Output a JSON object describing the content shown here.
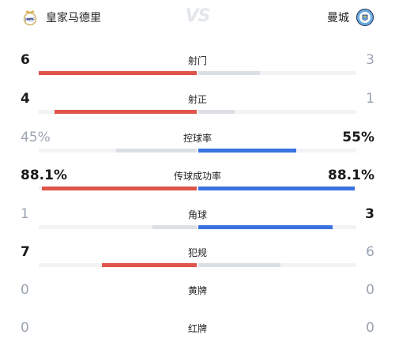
{
  "match": {
    "home_team": "皇家马德里",
    "away_team": "曼城",
    "vs_text": "VS"
  },
  "colors": {
    "home_leading": "#e0544a",
    "away_leading": "#3a72e0",
    "trailing": "#dcdfe4",
    "track": "#f2f3f5"
  },
  "stats": [
    {
      "label": "射门",
      "home": "6",
      "away": "3",
      "home_share": 1.0,
      "away_share": 0.39,
      "home_color": "red",
      "away_color": "grey",
      "home_style": "strong",
      "away_style": "muted"
    },
    {
      "label": "射正",
      "home": "4",
      "away": "1",
      "home_share": 0.9,
      "away_share": 0.23,
      "home_color": "red",
      "away_color": "grey",
      "home_style": "strong",
      "away_style": "muted"
    },
    {
      "label": "控球率",
      "home": "45%",
      "away": "55%",
      "home_share": 0.51,
      "away_share": 0.62,
      "home_color": "grey",
      "away_color": "blue",
      "home_style": "muted",
      "away_style": "strong"
    },
    {
      "label": "传球成功率",
      "home": "88.1%",
      "away": "88.1%",
      "home_share": 0.98,
      "away_share": 0.99,
      "home_color": "red",
      "away_color": "blue",
      "home_style": "strong",
      "away_style": "strong"
    },
    {
      "label": "角球",
      "home": "1",
      "away": "3",
      "home_share": 0.28,
      "away_share": 0.85,
      "home_color": "grey",
      "away_color": "blue",
      "home_style": "muted",
      "away_style": "strong"
    },
    {
      "label": "犯规",
      "home": "7",
      "away": "6",
      "home_share": 0.6,
      "away_share": 0.52,
      "home_color": "red",
      "away_color": "grey",
      "home_style": "strong",
      "away_style": "muted"
    },
    {
      "label": "黄牌",
      "home": "0",
      "away": "0",
      "home_share": 0,
      "away_share": 0,
      "home_color": "grey",
      "away_color": "grey",
      "home_style": "muted",
      "away_style": "muted"
    },
    {
      "label": "红牌",
      "home": "0",
      "away": "0",
      "home_share": 0,
      "away_share": 0,
      "home_color": "grey",
      "away_color": "grey",
      "home_style": "muted",
      "away_style": "muted"
    }
  ]
}
